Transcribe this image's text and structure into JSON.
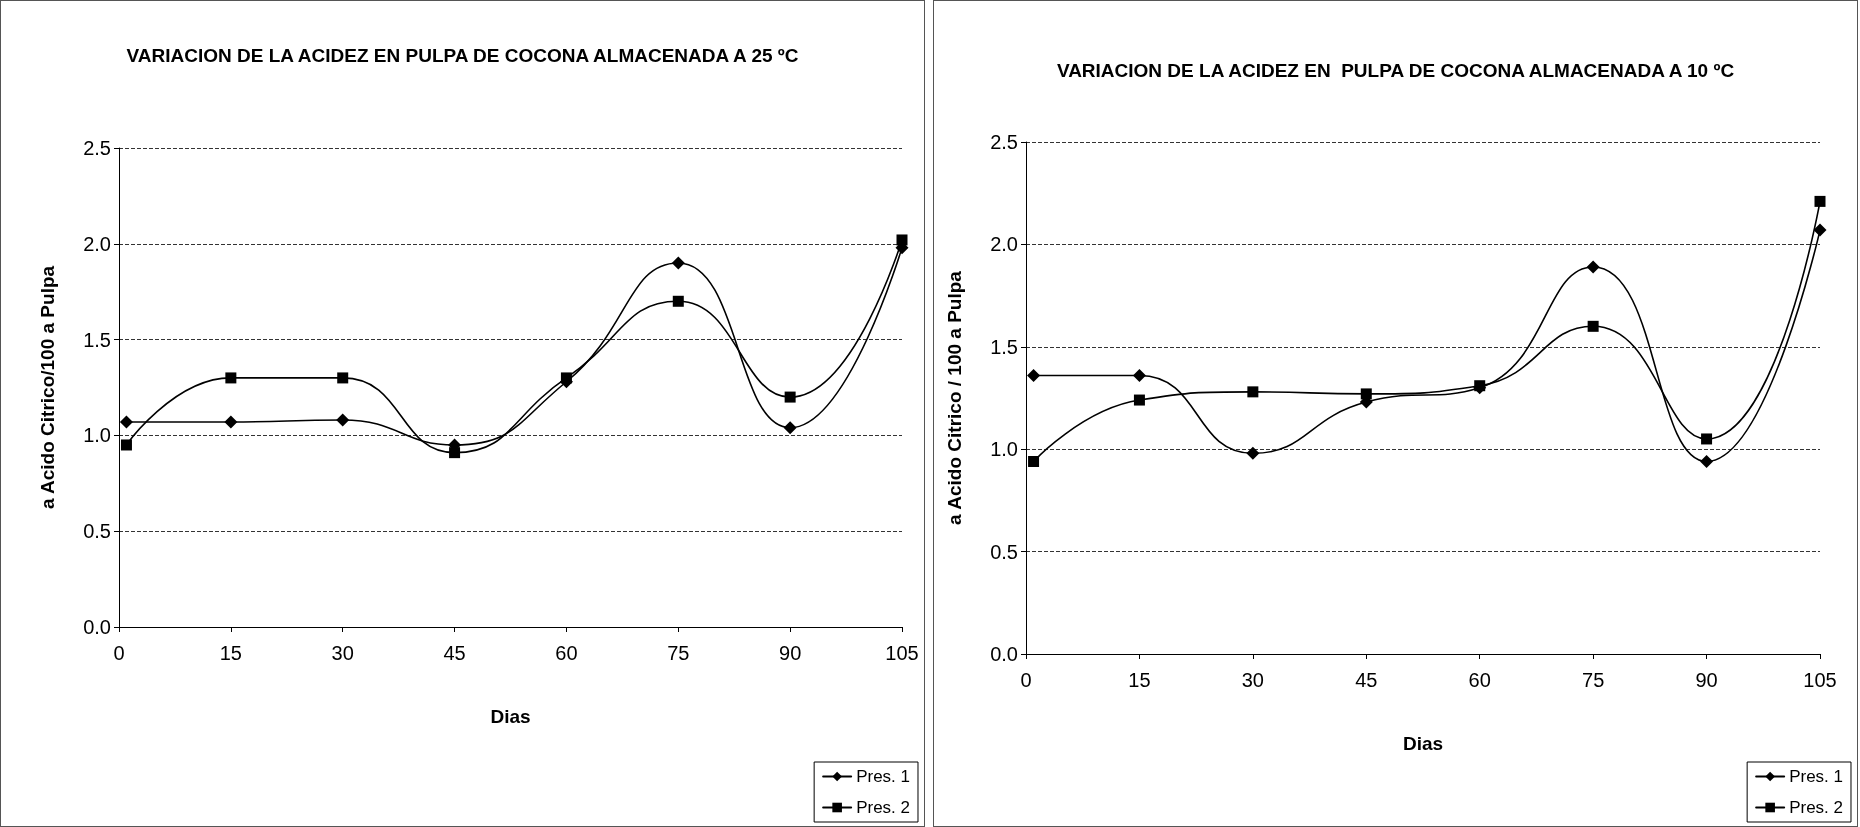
{
  "chart_data": [
    {
      "type": "line",
      "title": "VARIACION DE LA ACIDEZ EN PULPA DE COCONA ALMACENADA A 25 ºC",
      "xlabel": "Dias",
      "ylabel": "a Acido Citrico/100 a Pulpa",
      "x": [
        1,
        15,
        30,
        45,
        60,
        75,
        90,
        105
      ],
      "series": [
        {
          "name": "Pres. 1",
          "color": "#000000",
          "marker": "diamond",
          "values": [
            1.07,
            1.07,
            1.08,
            0.95,
            1.28,
            1.9,
            1.04,
            1.98
          ]
        },
        {
          "name": "Pres. 2",
          "color": "#000000",
          "marker": "square",
          "values": [
            0.95,
            1.3,
            1.3,
            0.91,
            1.3,
            1.7,
            1.2,
            2.02
          ]
        }
      ],
      "xlim": [
        0,
        105
      ],
      "xticks": [
        0,
        15,
        30,
        45,
        60,
        75,
        90,
        105
      ],
      "ylim": [
        0,
        2.5
      ],
      "yticks": [
        {
          "value": 0,
          "label": "0.0"
        },
        {
          "value": 0.5,
          "label": "0.5"
        },
        {
          "value": 1,
          "label": "1.0"
        },
        {
          "value": 1.5,
          "label": "1.5"
        },
        {
          "value": 2,
          "label": "2.0"
        },
        {
          "value": 2.5,
          "label": "2.5"
        }
      ],
      "grid": "y",
      "legend": "bottom right"
    },
    {
      "type": "line",
      "title": "VARIACION DE LA ACIDEZ EN  PULPA DE COCONA ALMACENADA A 10 ºC",
      "xlabel": "Dias",
      "ylabel": "a Acido Citrico / 100 a Pulpa",
      "x": [
        1,
        15,
        30,
        45,
        60,
        75,
        90,
        105
      ],
      "series": [
        {
          "name": "Pres. 1",
          "color": "#000000",
          "marker": "diamond",
          "values": [
            1.36,
            1.36,
            0.98,
            1.23,
            1.3,
            1.89,
            0.94,
            2.07
          ]
        },
        {
          "name": "Pres. 2",
          "color": "#000000",
          "marker": "square",
          "values": [
            0.94,
            1.24,
            1.28,
            1.27,
            1.31,
            1.6,
            1.05,
            2.21
          ]
        }
      ],
      "xlim": [
        0,
        105
      ],
      "xticks": [
        0,
        15,
        30,
        45,
        60,
        75,
        90,
        105
      ],
      "ylim": [
        0,
        2.5
      ],
      "yticks": [
        {
          "value": 0,
          "label": "0.0"
        },
        {
          "value": 0.5,
          "label": "0.5"
        },
        {
          "value": 1,
          "label": "1.0"
        },
        {
          "value": 1.5,
          "label": "1.5"
        },
        {
          "value": 2,
          "label": "2.0"
        },
        {
          "value": 2.5,
          "label": "2.5"
        }
      ],
      "grid": "y",
      "legend": "bottom right"
    }
  ]
}
